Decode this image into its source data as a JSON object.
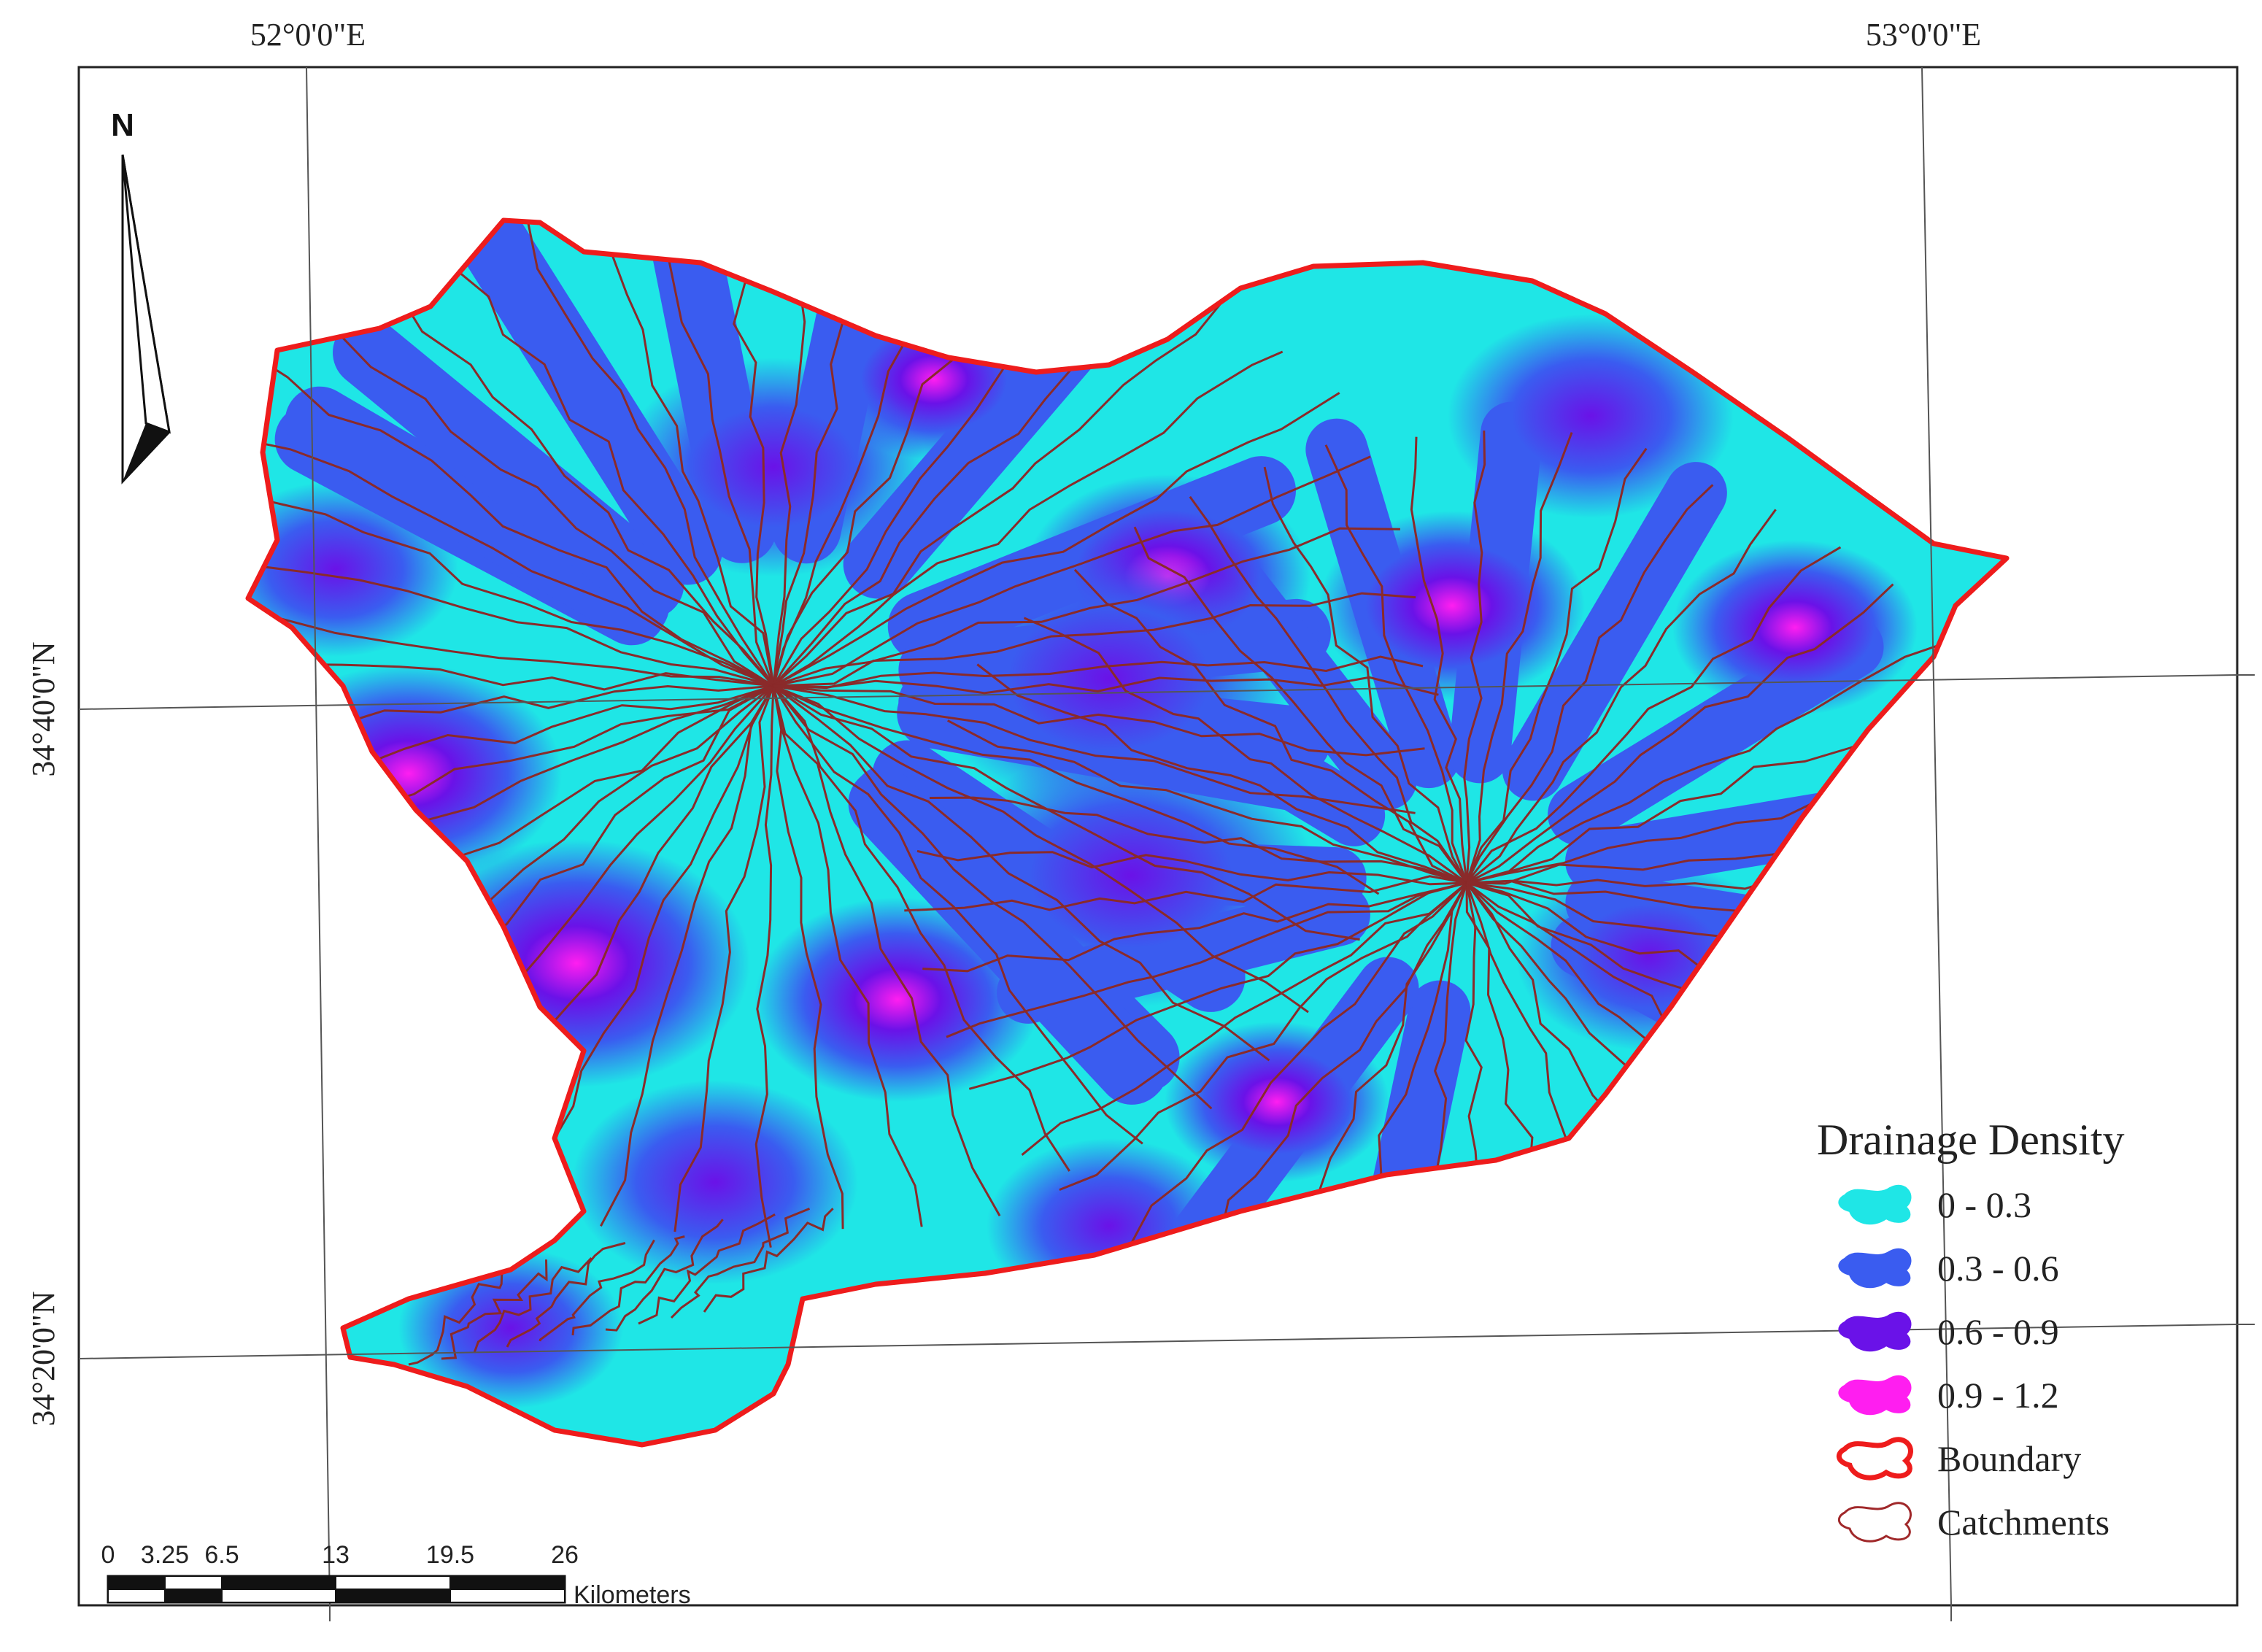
{
  "graticule": {
    "top_labels": [
      "52°0'0\"E",
      "53°0'0\"E"
    ],
    "left_labels": [
      "34°40'0\"N",
      "34°20'0\"N"
    ]
  },
  "north_arrow": {
    "label": "N"
  },
  "legend": {
    "title": "Drainage Density",
    "classes": [
      {
        "label": "0 - 0.3",
        "color": "#1fe6e6"
      },
      {
        "label": "0.3 - 0.6",
        "color": "#3a5cf0"
      },
      {
        "label": "0.6 - 0.9",
        "color": "#6a12e8"
      },
      {
        "label": "0.9 - 1.2",
        "color": "#ff1ef0"
      }
    ],
    "boundary": {
      "label": "Boundary",
      "color": "#ee1c1c"
    },
    "catchments": {
      "label": "Catchments",
      "color": "#a0282a"
    }
  },
  "scale_bar": {
    "ticks": [
      "0",
      "3.25",
      "6.5",
      "13",
      "19.5",
      "26"
    ],
    "unit": "Kilometers"
  }
}
